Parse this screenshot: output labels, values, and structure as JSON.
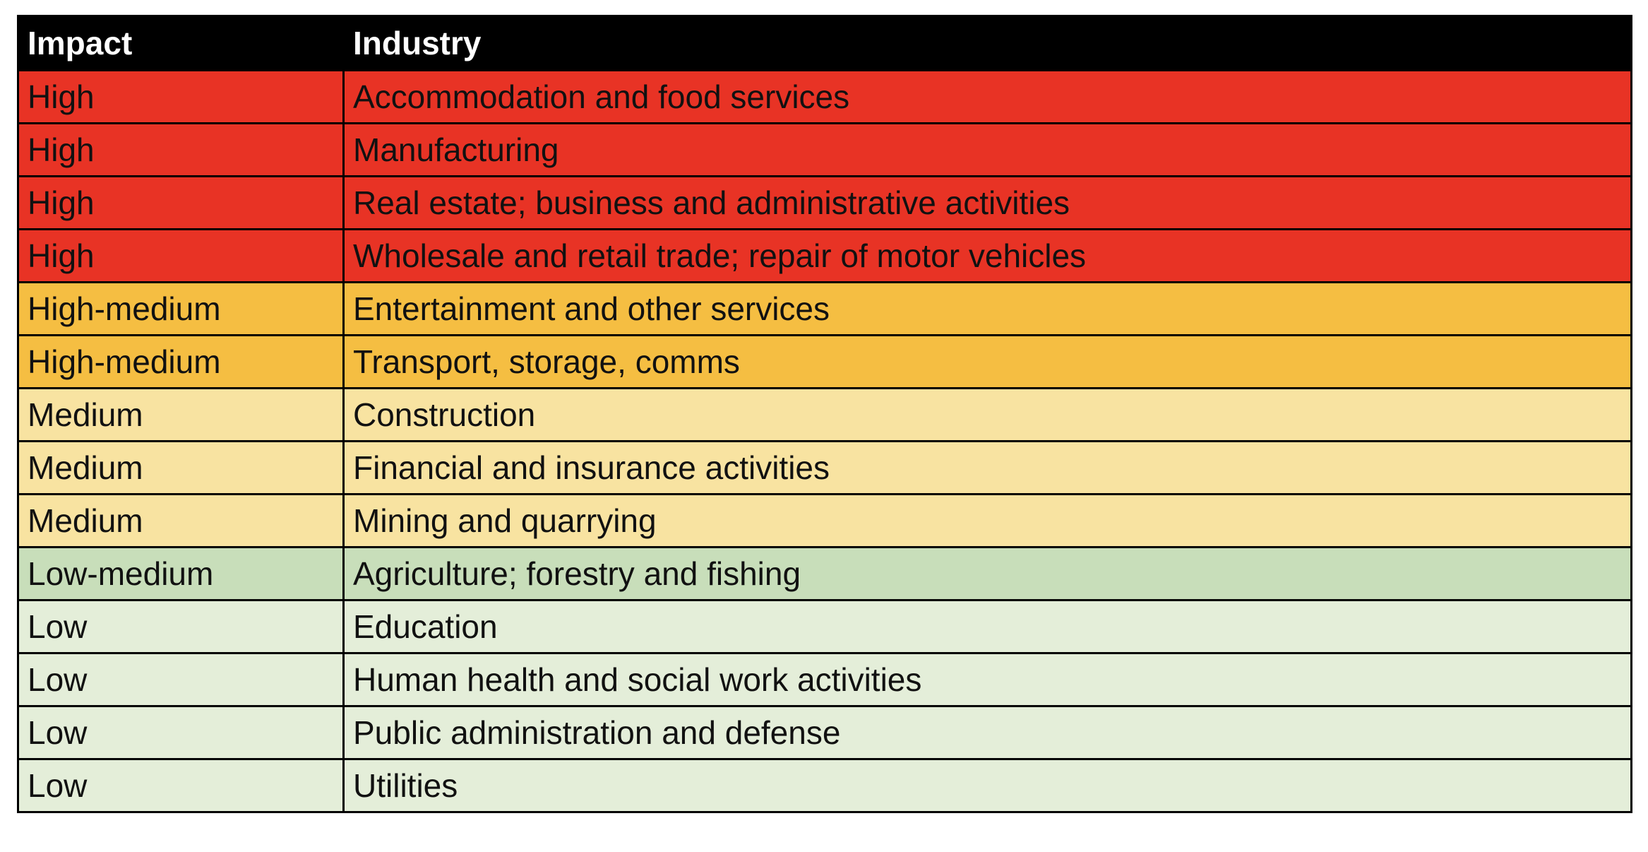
{
  "table": {
    "headers": {
      "impact": "Impact",
      "industry": "Industry"
    },
    "colors": {
      "header": "#000000",
      "High": "#e83325",
      "High-medium": "#f5be42",
      "Medium": "#f8e3a1",
      "Low-medium": "#c8deba",
      "Low": "#e4eed9"
    },
    "rows": [
      {
        "impact": "High",
        "industry": "Accommodation and food services"
      },
      {
        "impact": "High",
        "industry": "Manufacturing"
      },
      {
        "impact": "High",
        "industry": "Real estate; business and administrative activities"
      },
      {
        "impact": "High",
        "industry": "Wholesale and retail trade; repair of motor vehicles"
      },
      {
        "impact": "High-medium",
        "industry": "Entertainment and other services"
      },
      {
        "impact": "High-medium",
        "industry": "Transport, storage, comms"
      },
      {
        "impact": "Medium",
        "industry": "Construction"
      },
      {
        "impact": "Medium",
        "industry": "Financial and insurance activities"
      },
      {
        "impact": "Medium",
        "industry": "Mining and quarrying"
      },
      {
        "impact": "Low-medium",
        "industry": "Agriculture; forestry and fishing"
      },
      {
        "impact": "Low",
        "industry": "Education"
      },
      {
        "impact": "Low",
        "industry": "Human health and social work activities"
      },
      {
        "impact": "Low",
        "industry": "Public administration and defense"
      },
      {
        "impact": "Low",
        "industry": "Utilities"
      }
    ]
  }
}
